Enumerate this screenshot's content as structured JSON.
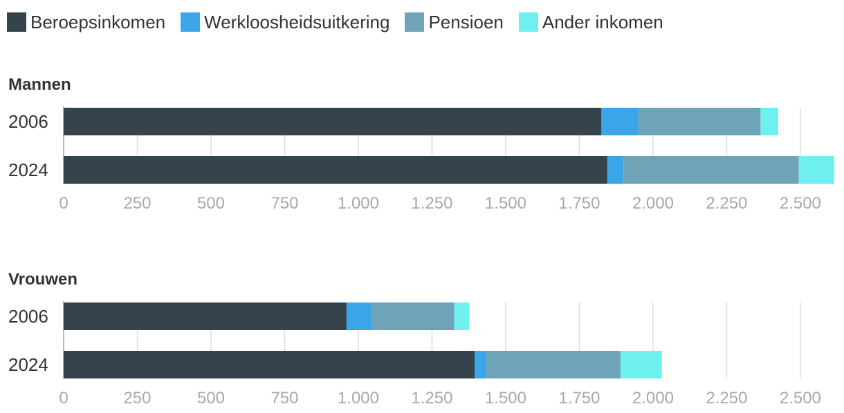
{
  "legend": [
    {
      "label": "Beroepsinkomen",
      "color": "#34434c"
    },
    {
      "label": "Werkloosheidsuitkering",
      "color": "#3aa6e8"
    },
    {
      "label": "Pensioen",
      "color": "#6fa3b8"
    },
    {
      "label": "Ander inkomen",
      "color": "#6ff0f0"
    }
  ],
  "chart_data": [
    {
      "type": "bar",
      "orientation": "horizontal",
      "stacked": true,
      "title": "Mannen",
      "categories": [
        "2006",
        "2024"
      ],
      "series": [
        {
          "name": "Beroepsinkomen",
          "values": [
            1825,
            1845
          ]
        },
        {
          "name": "Werkloosheidsuitkering",
          "values": [
            125,
            55
          ]
        },
        {
          "name": "Pensioen",
          "values": [
            415,
            595
          ]
        },
        {
          "name": "Ander inkomen",
          "values": [
            60,
            120
          ]
        }
      ],
      "xlim": [
        0,
        2620
      ],
      "xticks": [
        0,
        250,
        500,
        750,
        1000,
        1250,
        1500,
        1750,
        2000,
        2250,
        2500
      ],
      "xtick_labels": [
        "0",
        "250",
        "500",
        "750",
        "1.000",
        "1.250",
        "1.500",
        "1.750",
        "2.000",
        "2.250",
        "2.500"
      ],
      "grid": true
    },
    {
      "type": "bar",
      "orientation": "horizontal",
      "stacked": true,
      "title": "Vrouwen",
      "categories": [
        "2006",
        "2024"
      ],
      "series": [
        {
          "name": "Beroepsinkomen",
          "values": [
            960,
            1395
          ]
        },
        {
          "name": "Werkloosheidsuitkering",
          "values": [
            85,
            40
          ]
        },
        {
          "name": "Pensioen",
          "values": [
            280,
            455
          ]
        },
        {
          "name": "Ander inkomen",
          "values": [
            52,
            140
          ]
        }
      ],
      "xlim": [
        0,
        2620
      ],
      "xticks": [
        0,
        250,
        500,
        750,
        1000,
        1250,
        1500,
        1750,
        2000,
        2250,
        2500
      ],
      "xtick_labels": [
        "0",
        "250",
        "500",
        "750",
        "1.000",
        "1.250",
        "1.500",
        "1.750",
        "2.000",
        "2.250",
        "2.500"
      ],
      "grid": true
    }
  ]
}
